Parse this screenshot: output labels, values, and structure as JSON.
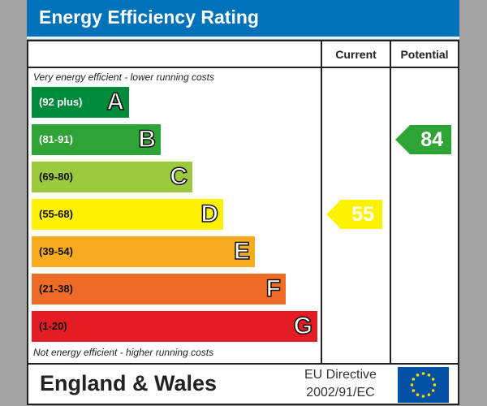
{
  "title": "Energy Efficiency Rating",
  "columns": {
    "current": "Current",
    "potential": "Potential"
  },
  "top_note": "Very energy efficient - lower running costs",
  "bottom_note": "Not energy efficient - higher running costs",
  "footer": {
    "region": "England & Wales",
    "directive_line1": "EU Directive",
    "directive_line2": "2002/91/EC",
    "flag": "eu-flag-icon"
  },
  "chart_data": {
    "type": "bar",
    "title": "Energy Efficiency Rating",
    "categories": [
      "A",
      "B",
      "C",
      "D",
      "E",
      "F",
      "G"
    ],
    "ranges": [
      "(92 plus)",
      "(81-91)",
      "(69-80)",
      "(55-68)",
      "(39-54)",
      "(21-38)",
      "(1-20)"
    ],
    "colors": [
      "#008a3c",
      "#2ea437",
      "#9bca3e",
      "#fff200",
      "#f7ac1f",
      "#ee6c25",
      "#e31d23"
    ],
    "current": {
      "value": 55,
      "band": "D",
      "color": "#fff200"
    },
    "potential": {
      "value": 84,
      "band": "B",
      "color": "#2ea437"
    }
  }
}
